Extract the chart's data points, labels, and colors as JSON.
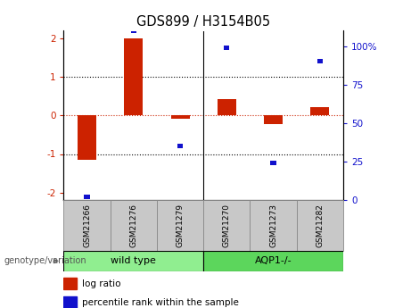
{
  "title": "GDS899 / H3154B05",
  "samples": [
    "GSM21266",
    "GSM21276",
    "GSM21279",
    "GSM21270",
    "GSM21273",
    "GSM21282"
  ],
  "log_ratio": [
    -1.15,
    2.0,
    -0.08,
    0.42,
    -0.22,
    0.22
  ],
  "percentile_rank": [
    2.0,
    100.0,
    32.0,
    90.0,
    22.0,
    82.0
  ],
  "log_ratio_color": "#cc2200",
  "percentile_color": "#1111cc",
  "ylim_left": [
    -2.2,
    2.2
  ],
  "yticks_left": [
    -2,
    -1,
    0,
    1,
    2
  ],
  "yticks_right": [
    0,
    25,
    50,
    75,
    100
  ],
  "ytick_labels_right": [
    "0",
    "25",
    "50",
    "75",
    "100%"
  ],
  "bar_width": 0.4,
  "sq_size": 0.12,
  "group_labels": [
    "wild type",
    "AQP1-/-"
  ],
  "group_colors": [
    "#90EE90",
    "#5CD65C"
  ],
  "sample_box_color": "#c8c8c8",
  "sample_box_edge": "#888888",
  "genotype_label": "genotype/variation",
  "legend_label1": "log ratio",
  "legend_label2": "percentile rank within the sample",
  "axvline_x": 2.5,
  "hline_y": [
    -1,
    0,
    1
  ],
  "hline_colors": [
    "black",
    "#cc2200",
    "black"
  ],
  "hline_styles": [
    ":",
    ":",
    ":"
  ]
}
